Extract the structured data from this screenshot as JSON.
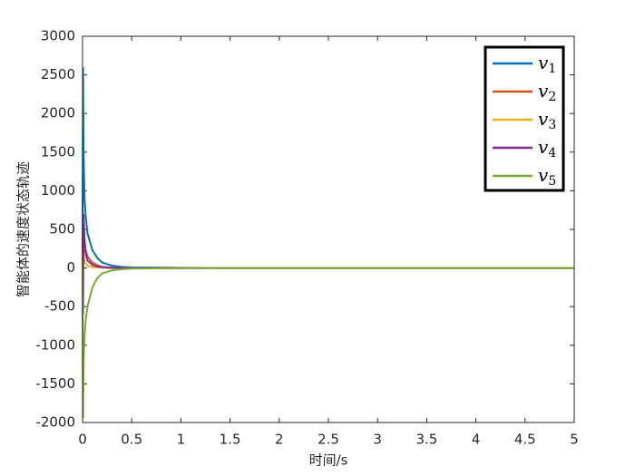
{
  "chart_data": {
    "type": "line",
    "xlabel": "时间/s",
    "ylabel": "智能体的速度状态轨迹",
    "x": [
      0,
      0.005,
      0.01,
      0.02,
      0.03,
      0.05,
      0.1,
      0.15,
      0.2,
      0.3,
      0.4,
      0.5,
      1,
      1.5,
      2,
      3,
      4,
      5
    ],
    "series": [
      {
        "name": "v1",
        "color": "#0072bd",
        "values": [
          0,
          2600,
          1500,
          900,
          700,
          450,
          230,
          130,
          70,
          30,
          15,
          8,
          2,
          0,
          0,
          0,
          0,
          0
        ]
      },
      {
        "name": "v2",
        "color": "#d95319",
        "values": [
          0,
          700,
          500,
          350,
          250,
          150,
          70,
          35,
          15,
          5,
          2,
          1,
          0,
          0,
          0,
          0,
          0,
          0
        ]
      },
      {
        "name": "v3",
        "color": "#edb120",
        "values": [
          0,
          300,
          200,
          100,
          60,
          30,
          10,
          5,
          2,
          0,
          0,
          0,
          0,
          0,
          0,
          0,
          0,
          0
        ]
      },
      {
        "name": "v4",
        "color": "#7e2f8e",
        "values": [
          0,
          -600,
          700,
          400,
          200,
          100,
          40,
          20,
          10,
          3,
          1,
          0,
          0,
          0,
          0,
          0,
          0,
          0
        ]
      },
      {
        "name": "v5",
        "color": "#77ac30",
        "values": [
          0,
          -1950,
          -1200,
          -900,
          -700,
          -500,
          -250,
          -130,
          -70,
          -30,
          -15,
          -8,
          -2,
          0,
          0,
          0,
          0,
          0
        ]
      }
    ],
    "xlim": [
      0,
      5
    ],
    "xticks": [
      0,
      0.5,
      1,
      1.5,
      2,
      2.5,
      3,
      3.5,
      4,
      4.5,
      5
    ],
    "ylim": [
      -2000,
      3000
    ],
    "yticks": [
      -2000,
      -1500,
      -1000,
      -500,
      0,
      500,
      1000,
      1500,
      2000,
      2500,
      3000
    ],
    "grid": false,
    "legend": "top-right"
  }
}
